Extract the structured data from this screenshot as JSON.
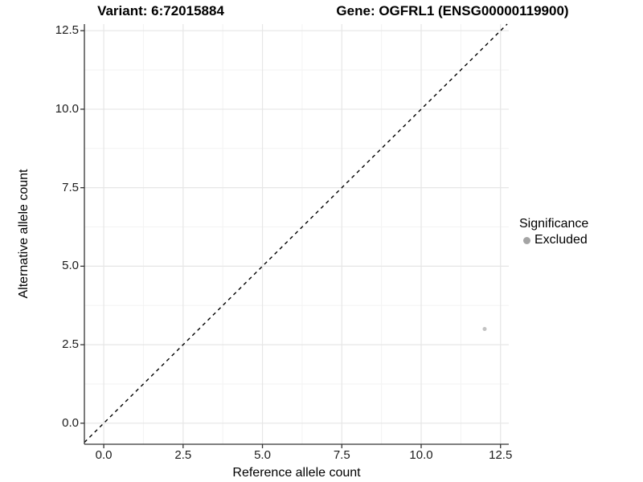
{
  "chart_data": {
    "type": "scatter",
    "title_left": "Variant: 6:72015884",
    "title_right": "Gene: OGFRL1 (ENSG00000119900)",
    "xlabel": "Reference allele count",
    "ylabel": "Alternative allele count",
    "x_ticks": [
      0,
      2.5,
      5,
      7.5,
      10,
      12.5
    ],
    "y_ticks": [
      0,
      2.5,
      5,
      7.5,
      10,
      12.5
    ],
    "x_tick_labels": [
      "0.0",
      "2.5",
      "5.0",
      "7.5",
      "10.0",
      "12.5"
    ],
    "y_tick_labels": [
      "0.0",
      "2.5",
      "5.0",
      "7.5",
      "10.0",
      "12.5"
    ],
    "xlim": [
      -0.61,
      12.76
    ],
    "ylim": [
      -0.67,
      12.71
    ],
    "grid": "major+minor",
    "series": [
      {
        "name": "Excluded",
        "color": "#c3c3c3",
        "point_radius": 2.5,
        "points": [
          {
            "x": 12,
            "y": 3
          }
        ]
      }
    ],
    "reference_line": {
      "type": "identity",
      "slope": 1,
      "intercept": 0,
      "style": "dashed",
      "color": "#000000"
    },
    "legend": {
      "position": "right",
      "title": "Significance",
      "entries": [
        {
          "label": "Excluded",
          "color": "#a4a4a4"
        }
      ]
    },
    "colors": {
      "grid_major": "#e6e6e6",
      "grid_minor": "#f3f3f3",
      "axis_line": "#333333",
      "tick_mark": "#333333",
      "tick_text": "#1c1c1c"
    }
  }
}
